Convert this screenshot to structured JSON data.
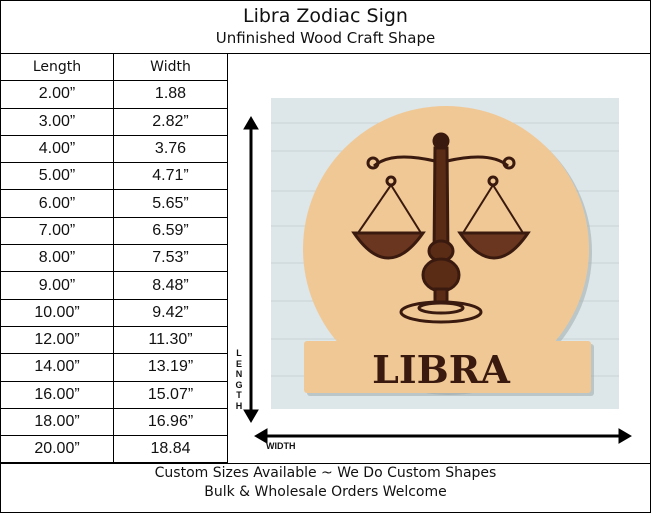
{
  "header": {
    "title": "Libra Zodiac Sign",
    "subtitle": "Unfinished Wood Craft Shape"
  },
  "size_table": {
    "columns": [
      "Length",
      "Width"
    ],
    "rows": [
      [
        "2.00”",
        "1.88"
      ],
      [
        "3.00”",
        "2.82”"
      ],
      [
        "4.00”",
        "3.76"
      ],
      [
        "5.00”",
        "4.71”"
      ],
      [
        "6.00”",
        "5.65”"
      ],
      [
        "7.00”",
        "6.59”"
      ],
      [
        "8.00”",
        "7.53”"
      ],
      [
        "9.00”",
        "8.48”"
      ],
      [
        "10.00”",
        "9.42”"
      ],
      [
        "12.00”",
        "11.30”"
      ],
      [
        "14.00”",
        "13.19”"
      ],
      [
        "16.00”",
        "15.07”"
      ],
      [
        "18.00”",
        "16.96”"
      ],
      [
        "20.00”",
        "18.84"
      ]
    ]
  },
  "product_image": {
    "plaque_text": "LIBRA",
    "length_label": "LENGTH",
    "width_label": "WIDTH",
    "wood_color": "#f0c896",
    "engrave_color": "#3a1a0e",
    "background_color": "#dde6e8"
  },
  "footer": {
    "line1": "Custom Sizes Available ~ We Do Custom Shapes",
    "line2": "Bulk & Wholesale Orders Welcome"
  }
}
